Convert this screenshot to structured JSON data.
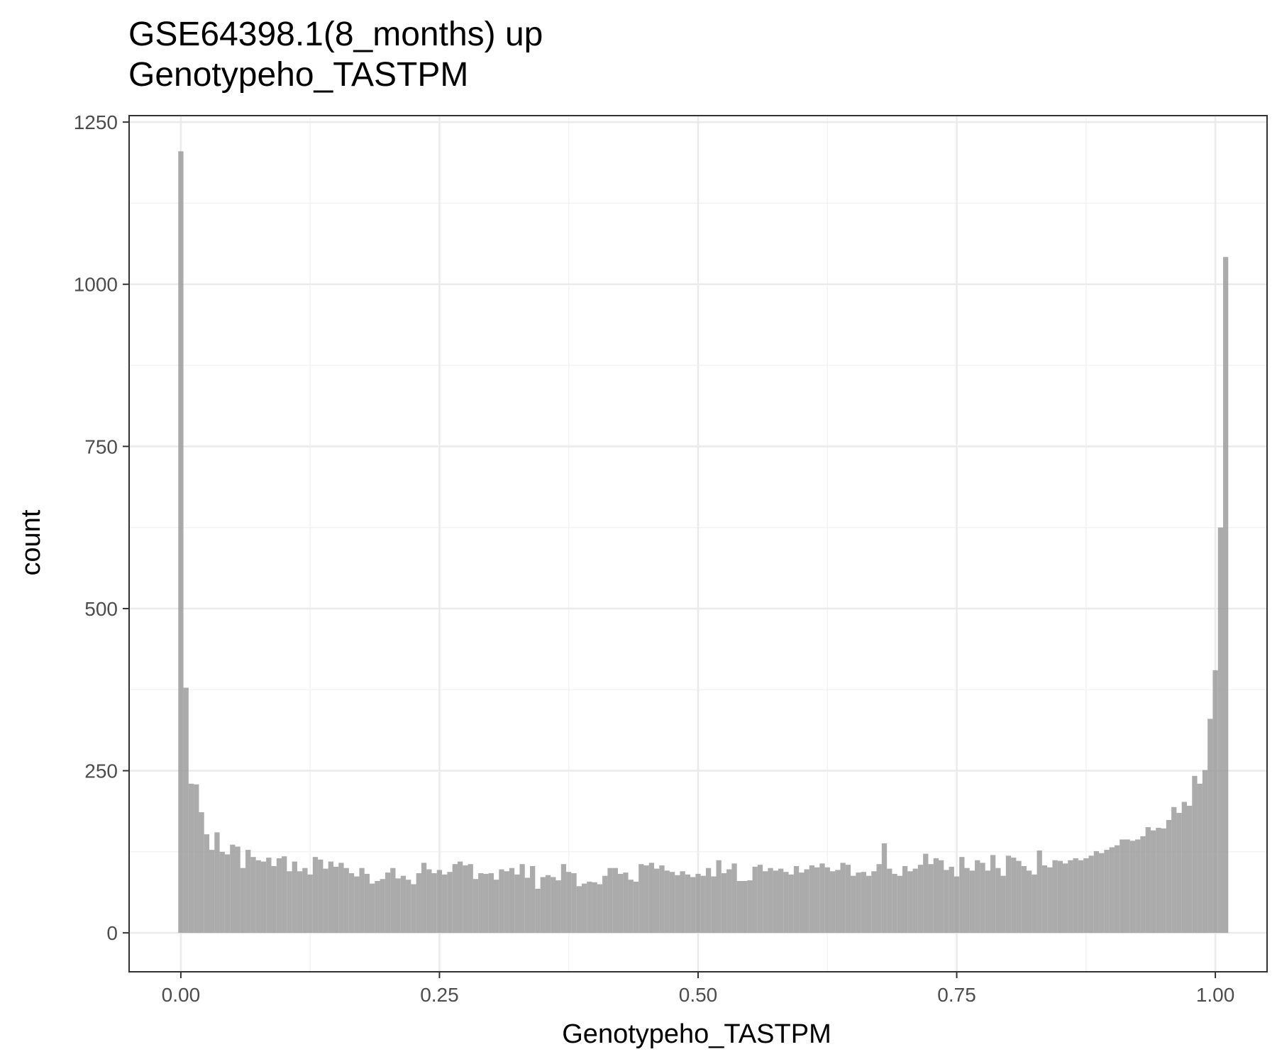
{
  "chart_data": {
    "type": "bar",
    "title": "GSE64398.1(8_months) up",
    "subtitle": "Genotypeho_TASTPM",
    "xlabel": "Genotypeho_TASTPM",
    "ylabel": "count",
    "xlim": [
      -0.05,
      1.05
    ],
    "ylim": [
      -60,
      1260
    ],
    "x_ticks": [
      0.0,
      0.25,
      0.5,
      0.75,
      1.0
    ],
    "x_tick_labels": [
      "0.00",
      "0.25",
      "0.50",
      "0.75",
      "1.00"
    ],
    "x_minor_ticks": [
      0.125,
      0.375,
      0.625,
      0.875
    ],
    "y_ticks": [
      0,
      250,
      500,
      750,
      1000,
      1250
    ],
    "y_tick_labels": [
      "0",
      "250",
      "500",
      "750",
      "1000",
      "1250"
    ],
    "y_minor_ticks": [
      125,
      375,
      625,
      875,
      1125
    ],
    "grid": true,
    "bin_start": 0.0,
    "bin_width": 0.005,
    "values": [
      1205,
      378,
      230,
      229,
      186,
      152,
      128,
      155,
      125,
      121,
      136,
      133,
      100,
      128,
      117,
      112,
      110,
      116,
      103,
      115,
      118,
      95,
      110,
      95,
      100,
      90,
      117,
      113,
      99,
      110,
      102,
      108,
      100,
      92,
      87,
      100,
      91,
      76,
      80,
      83,
      93,
      100,
      84,
      88,
      82,
      75,
      92,
      108,
      98,
      92,
      97,
      90,
      94,
      106,
      110,
      104,
      106,
      83,
      92,
      91,
      92,
      82,
      98,
      95,
      100,
      90,
      106,
      85,
      103,
      68,
      86,
      89,
      86,
      81,
      106,
      94,
      92,
      72,
      76,
      79,
      78,
      75,
      88,
      100,
      100,
      91,
      93,
      82,
      79,
      106,
      104,
      108,
      99,
      104,
      96,
      94,
      89,
      95,
      90,
      86,
      91,
      88,
      100,
      87,
      112,
      92,
      98,
      107,
      80,
      80,
      81,
      102,
      105,
      95,
      100,
      96,
      99,
      94,
      90,
      103,
      93,
      98,
      104,
      101,
      107,
      101,
      95,
      97,
      108,
      105,
      88,
      93,
      94,
      88,
      95,
      106,
      138,
      99,
      91,
      88,
      103,
      95,
      99,
      105,
      122,
      106,
      115,
      112,
      97,
      102,
      87,
      117,
      100,
      96,
      112,
      108,
      96,
      120,
      100,
      88,
      119,
      116,
      111,
      103,
      96,
      90,
      127,
      104,
      101,
      112,
      111,
      107,
      112,
      115,
      112,
      115,
      119,
      126,
      123,
      128,
      132,
      135,
      144,
      144,
      142,
      144,
      149,
      163,
      158,
      162,
      161,
      174,
      194,
      185,
      202,
      196,
      242,
      230,
      251,
      330,
      405,
      625,
      1042
    ]
  }
}
